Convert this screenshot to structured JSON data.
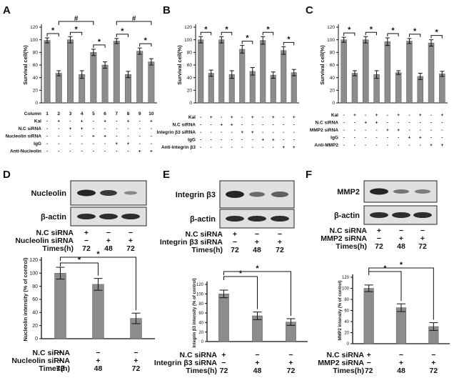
{
  "panels": {
    "A": {
      "label": "A",
      "chart_data": {
        "type": "bar",
        "ylabel": "Survival cell(%)",
        "ylim": [
          0,
          120
        ],
        "yticks": [
          0,
          20,
          40,
          60,
          80,
          100,
          120
        ],
        "categories": [
          "1",
          "2",
          "3",
          "4",
          "5",
          "6",
          "7",
          "8",
          "9",
          "10"
        ],
        "values": [
          99,
          47,
          100,
          45,
          80,
          60,
          98,
          45,
          82,
          65
        ],
        "errors": [
          4,
          4,
          5,
          6,
          5,
          5,
          4,
          5,
          5,
          5
        ],
        "sig_pairs": [
          [
            1,
            2
          ],
          [
            3,
            4
          ],
          [
            5,
            6
          ],
          [
            7,
            8
          ],
          [
            9,
            10
          ]
        ],
        "sig_symbol": "*",
        "hash_pairs": [
          [
            2,
            5
          ],
          [
            7,
            10
          ]
        ],
        "hash_symbol": "#",
        "table_rows": [
          {
            "label": "Column",
            "values": [
              "1",
              "2",
              "3",
              "4",
              "5",
              "6",
              "7",
              "8",
              "9",
              "10"
            ]
          },
          {
            "label": "Kal",
            "values": [
              "-",
              "+",
              "-",
              "+",
              "-",
              "+",
              "-",
              "+",
              "-",
              "+"
            ]
          },
          {
            "label": "N.C siRNA",
            "values": [
              "-",
              "-",
              "+",
              "+",
              "-",
              "-",
              "-",
              "-",
              "-",
              "-"
            ]
          },
          {
            "label": "Nucleolin siRNA",
            "values": [
              "-",
              "-",
              "-",
              "-",
              "+",
              "+",
              "-",
              "-",
              "-",
              "-"
            ]
          },
          {
            "label": "IgG",
            "values": [
              "-",
              "-",
              "-",
              "-",
              "-",
              "-",
              "+",
              "+",
              "-",
              "-"
            ]
          },
          {
            "label": "Anti-Nucleolin",
            "values": [
              "-",
              "-",
              "-",
              "-",
              "-",
              "-",
              "-",
              "-",
              "+",
              "+"
            ]
          }
        ]
      }
    },
    "B": {
      "label": "B",
      "chart_data": {
        "type": "bar",
        "ylabel": "Survival cell(%)",
        "ylim": [
          0,
          120
        ],
        "yticks": [
          0,
          20,
          40,
          60,
          80,
          100,
          120
        ],
        "values": [
          100,
          47,
          100,
          45,
          85,
          50,
          99,
          44,
          83,
          48
        ],
        "errors": [
          5,
          5,
          5,
          6,
          6,
          6,
          6,
          5,
          6,
          5
        ],
        "sig_pairs": [
          [
            1,
            2
          ],
          [
            3,
            4
          ],
          [
            5,
            6
          ],
          [
            7,
            8
          ],
          [
            9,
            10
          ]
        ],
        "sig_symbol": "*",
        "table_rows": [
          {
            "label": "Kal",
            "values": [
              "-",
              "+",
              "-",
              "+",
              "-",
              "+",
              "-",
              "+",
              "-",
              "+"
            ]
          },
          {
            "label": "N.C siRNA",
            "values": [
              "-",
              "-",
              "+",
              "+",
              "-",
              "-",
              "-",
              "-",
              "-",
              "-"
            ]
          },
          {
            "label": "Integrin β3 siRNA",
            "values": [
              "-",
              "-",
              "-",
              "-",
              "+",
              "+",
              "-",
              "-",
              "-",
              "-"
            ]
          },
          {
            "label": "IgG",
            "values": [
              "-",
              "-",
              "-",
              "-",
              "-",
              "-",
              "+",
              "+",
              "-",
              "-"
            ]
          },
          {
            "label": "Anti-Integrin β3",
            "values": [
              "-",
              "-",
              "-",
              "-",
              "-",
              "-",
              "-",
              "-",
              "+",
              "+"
            ]
          }
        ]
      }
    },
    "C": {
      "label": "C",
      "chart_data": {
        "type": "bar",
        "ylabel": "Survival cell(%)",
        "ylim": [
          0,
          120
        ],
        "yticks": [
          0,
          20,
          40,
          60,
          80,
          100,
          120
        ],
        "values": [
          100,
          47,
          100,
          45,
          97,
          48,
          98,
          42,
          95,
          46
        ],
        "errors": [
          4,
          4,
          5,
          6,
          6,
          3,
          4,
          5,
          5,
          4
        ],
        "sig_pairs": [
          [
            1,
            2
          ],
          [
            3,
            4
          ],
          [
            5,
            6
          ],
          [
            7,
            8
          ],
          [
            9,
            10
          ]
        ],
        "sig_symbol": "*",
        "table_rows": [
          {
            "label": "Kal",
            "values": [
              "-",
              "+",
              "-",
              "+",
              "-",
              "+",
              "-",
              "+",
              "-",
              "+"
            ]
          },
          {
            "label": "N.C siRNA",
            "values": [
              "-",
              "-",
              "+",
              "+",
              "-",
              "-",
              "-",
              "-",
              "-",
              "-"
            ]
          },
          {
            "label": "MMP2 siRNA",
            "values": [
              "-",
              "-",
              "-",
              "-",
              "+",
              "+",
              "-",
              "-",
              "-",
              "-"
            ]
          },
          {
            "label": "IgG",
            "values": [
              "-",
              "-",
              "-",
              "-",
              "-",
              "-",
              "+",
              "+",
              "-",
              "-"
            ]
          },
          {
            "label": "Anti-MMP2",
            "values": [
              "-",
              "-",
              "-",
              "-",
              "-",
              "-",
              "-",
              "-",
              "+",
              "+"
            ]
          }
        ]
      }
    },
    "D": {
      "label": "D",
      "blot_labels": [
        "Nucleolin",
        "β-actin"
      ],
      "blot_table": [
        {
          "label": "N.C siRNA",
          "values": [
            "+",
            "−",
            "−"
          ]
        },
        {
          "label": "Nucleolin siRNA",
          "values": [
            "−",
            "+",
            "+"
          ]
        },
        {
          "label": "Times(h)",
          "values": [
            "72",
            "48",
            "72"
          ]
        }
      ],
      "chart_data": {
        "type": "bar",
        "ylabel": "Nucleolin intensity (% of control)",
        "ylim": [
          0,
          120
        ],
        "yticks": [
          0,
          20,
          40,
          60,
          80,
          100,
          120
        ],
        "values": [
          100,
          83,
          31
        ],
        "errors": [
          9,
          9,
          8
        ],
        "sig_brackets": [
          [
            1,
            2
          ],
          [
            1,
            3
          ]
        ],
        "sig_symbol": "*",
        "table_rows": [
          {
            "label": "N.C siRNA",
            "values": [
              "+",
              "−",
              "−"
            ]
          },
          {
            "label": "Nucleolin siRNA",
            "values": [
              "−",
              "+",
              "+"
            ]
          },
          {
            "label": "Times(h)",
            "values": [
              "72",
              "48",
              "72"
            ]
          }
        ]
      }
    },
    "E": {
      "label": "E",
      "blot_labels": [
        "Integrin β3",
        "β-actin"
      ],
      "blot_table": [
        {
          "label": "N.C siRNA",
          "values": [
            "+",
            "−",
            "−"
          ]
        },
        {
          "label": "Integrin β3 siRNA",
          "values": [
            "−",
            "+",
            "+"
          ]
        },
        {
          "label": "Times(h)",
          "values": [
            "72",
            "48",
            "72"
          ]
        }
      ],
      "chart_data": {
        "type": "bar",
        "ylabel": "Integrin β3 intensity (% of control)",
        "ylim": [
          0,
          120
        ],
        "yticks": [
          0,
          20,
          40,
          60,
          80,
          100,
          120
        ],
        "values": [
          100,
          54,
          41
        ],
        "errors": [
          8,
          8,
          7
        ],
        "sig_brackets": [
          [
            1,
            2
          ],
          [
            1,
            3
          ]
        ],
        "sig_symbol": "*",
        "table_rows": [
          {
            "label": "N.C siRNA",
            "values": [
              "+",
              "−",
              "−"
            ]
          },
          {
            "label": "Integrin β3 siRNA",
            "values": [
              "−",
              "+",
              "+"
            ]
          },
          {
            "label": "Times(h)",
            "values": [
              "72",
              "48",
              "72"
            ]
          }
        ]
      }
    },
    "F": {
      "label": "F",
      "blot_labels": [
        "MMP2",
        "β-actin"
      ],
      "blot_table": [
        {
          "label": "N.C siRNA",
          "values": [
            "+",
            "−",
            "−"
          ]
        },
        {
          "label": "MMP2 siRNA",
          "values": [
            "−",
            "+",
            "+"
          ]
        },
        {
          "label": "Times(h)",
          "values": [
            "72",
            "48",
            "72"
          ]
        }
      ],
      "chart_data": {
        "type": "bar",
        "ylabel": "MMP2 intensity (% of control)",
        "ylim": [
          0,
          120
        ],
        "yticks": [
          0,
          20,
          40,
          60,
          80,
          100,
          120
        ],
        "values": [
          100,
          65,
          31
        ],
        "errors": [
          6,
          7,
          7
        ],
        "sig_brackets": [
          [
            1,
            2
          ],
          [
            1,
            3
          ]
        ],
        "sig_symbol": "*",
        "table_rows": [
          {
            "label": "N.C siRNA",
            "values": [
              "+",
              "−",
              "−"
            ]
          },
          {
            "label": "MMP2 siRNA",
            "values": [
              "−",
              "+",
              "+"
            ]
          },
          {
            "label": "Times(h)",
            "values": [
              "72",
              "48",
              "72"
            ]
          }
        ]
      }
    }
  }
}
